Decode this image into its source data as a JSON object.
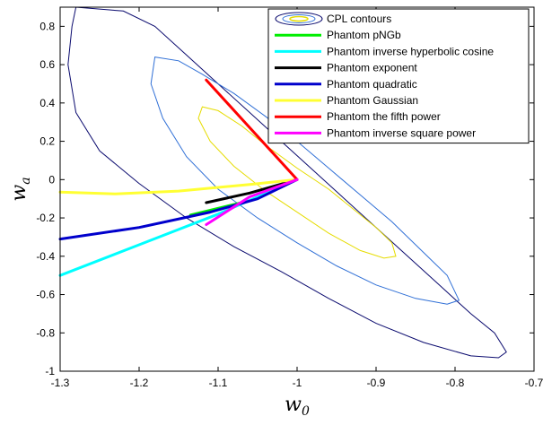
{
  "chart_data": {
    "type": "line",
    "xlabel": "w",
    "xlabel_sub": "0",
    "ylabel": "w",
    "ylabel_sub": "a",
    "xlim": [
      -1.3,
      -0.7
    ],
    "ylim": [
      -1.0,
      0.9
    ],
    "xticks": [
      -1.3,
      -1.2,
      -1.1,
      -1.0,
      -0.9,
      -0.8,
      -0.7
    ],
    "xtick_labels": [
      "-1.3",
      "-1.2",
      "-1.1",
      "-1",
      "-0.9",
      "-0.8",
      "-0.7"
    ],
    "yticks": [
      -1.0,
      -0.8,
      -0.6,
      -0.4,
      -0.2,
      0.0,
      0.2,
      0.4,
      0.6,
      0.8
    ],
    "ytick_labels": [
      "-1",
      "-0.8",
      "-0.6",
      "-0.4",
      "-0.2",
      "0",
      "0.2",
      "0.4",
      "0.6",
      "0.8"
    ],
    "grid": false,
    "legend_position": "top-right",
    "contours": {
      "name": "CPL contours",
      "levels": [
        {
          "color": "#0a0a6e",
          "points": [
            [
              -1.28,
              0.9
            ],
            [
              -1.22,
              0.88
            ],
            [
              -1.18,
              0.8
            ],
            [
              -1.14,
              0.65
            ],
            [
              -1.1,
              0.5
            ],
            [
              -1.06,
              0.35
            ],
            [
              -1.02,
              0.2
            ],
            [
              -0.98,
              0.05
            ],
            [
              -0.94,
              -0.1
            ],
            [
              -0.9,
              -0.25
            ],
            [
              -0.86,
              -0.4
            ],
            [
              -0.82,
              -0.55
            ],
            [
              -0.78,
              -0.7
            ],
            [
              -0.75,
              -0.8
            ],
            [
              -0.735,
              -0.9
            ],
            [
              -0.745,
              -0.93
            ],
            [
              -0.78,
              -0.92
            ],
            [
              -0.84,
              -0.85
            ],
            [
              -0.9,
              -0.75
            ],
            [
              -0.96,
              -0.62
            ],
            [
              -1.02,
              -0.48
            ],
            [
              -1.08,
              -0.35
            ],
            [
              -1.14,
              -0.2
            ],
            [
              -1.2,
              -0.02
            ],
            [
              -1.25,
              0.15
            ],
            [
              -1.28,
              0.35
            ],
            [
              -1.29,
              0.6
            ],
            [
              -1.285,
              0.8
            ],
            [
              -1.28,
              0.9
            ]
          ]
        },
        {
          "color": "#2f6fd6",
          "points": [
            [
              -1.18,
              0.64
            ],
            [
              -1.15,
              0.62
            ],
            [
              -1.12,
              0.55
            ],
            [
              -1.08,
              0.45
            ],
            [
              -1.04,
              0.33
            ],
            [
              -1.0,
              0.2
            ],
            [
              -0.96,
              0.06
            ],
            [
              -0.92,
              -0.08
            ],
            [
              -0.88,
              -0.22
            ],
            [
              -0.84,
              -0.38
            ],
            [
              -0.81,
              -0.5
            ],
            [
              -0.795,
              -0.63
            ],
            [
              -0.81,
              -0.65
            ],
            [
              -0.85,
              -0.62
            ],
            [
              -0.9,
              -0.55
            ],
            [
              -0.95,
              -0.45
            ],
            [
              -1.0,
              -0.33
            ],
            [
              -1.05,
              -0.2
            ],
            [
              -1.1,
              -0.05
            ],
            [
              -1.14,
              0.12
            ],
            [
              -1.17,
              0.32
            ],
            [
              -1.185,
              0.5
            ],
            [
              -1.18,
              0.64
            ]
          ]
        },
        {
          "color": "#e6dc00",
          "points": [
            [
              -1.12,
              0.38
            ],
            [
              -1.1,
              0.36
            ],
            [
              -1.07,
              0.28
            ],
            [
              -1.04,
              0.18
            ],
            [
              -1.0,
              0.06
            ],
            [
              -0.96,
              -0.05
            ],
            [
              -0.93,
              -0.15
            ],
            [
              -0.9,
              -0.25
            ],
            [
              -0.88,
              -0.33
            ],
            [
              -0.875,
              -0.4
            ],
            [
              -0.89,
              -0.41
            ],
            [
              -0.92,
              -0.37
            ],
            [
              -0.96,
              -0.28
            ],
            [
              -1.0,
              -0.17
            ],
            [
              -1.04,
              -0.06
            ],
            [
              -1.08,
              0.07
            ],
            [
              -1.11,
              0.2
            ],
            [
              -1.125,
              0.32
            ],
            [
              -1.12,
              0.38
            ]
          ]
        }
      ]
    },
    "series": [
      {
        "name": "Phantom pNGb",
        "color": "#00ee00",
        "values": [
          [
            -1.0,
            0.0
          ],
          [
            -1.06,
            -0.11
          ],
          [
            -1.135,
            -0.185
          ]
        ]
      },
      {
        "name": "Phantom inverse hyperbolic cosine",
        "color": "#00ffff",
        "values": [
          [
            -1.0,
            0.0
          ],
          [
            -1.1,
            -0.18
          ],
          [
            -1.2,
            -0.34
          ],
          [
            -1.3,
            -0.5
          ]
        ]
      },
      {
        "name": "Phantom exponent",
        "color": "#000000",
        "values": [
          [
            -1.0,
            0.0
          ],
          [
            -1.06,
            -0.07
          ],
          [
            -1.115,
            -0.12
          ]
        ]
      },
      {
        "name": "Phantom quadratic",
        "color": "#0000cc",
        "values": [
          [
            -1.0,
            0.0
          ],
          [
            -1.05,
            -0.1
          ],
          [
            -1.11,
            -0.17
          ],
          [
            -1.2,
            -0.25
          ],
          [
            -1.3,
            -0.31
          ]
        ]
      },
      {
        "name": "Phantom Gaussian",
        "color": "#ffff33",
        "values": [
          [
            -1.0,
            0.0
          ],
          [
            -1.06,
            -0.025
          ],
          [
            -1.15,
            -0.06
          ],
          [
            -1.23,
            -0.075
          ],
          [
            -1.3,
            -0.065
          ]
        ]
      },
      {
        "name": "Phantom the fifth power",
        "color": "#ff0000",
        "values": [
          [
            -1.115,
            0.52
          ],
          [
            -1.0,
            0.0
          ]
        ]
      },
      {
        "name": "Phantom inverse square power",
        "color": "#ff00ff",
        "values": [
          [
            -1.0,
            0.0
          ],
          [
            -1.06,
            -0.09
          ],
          [
            -1.115,
            -0.235
          ]
        ]
      }
    ]
  }
}
